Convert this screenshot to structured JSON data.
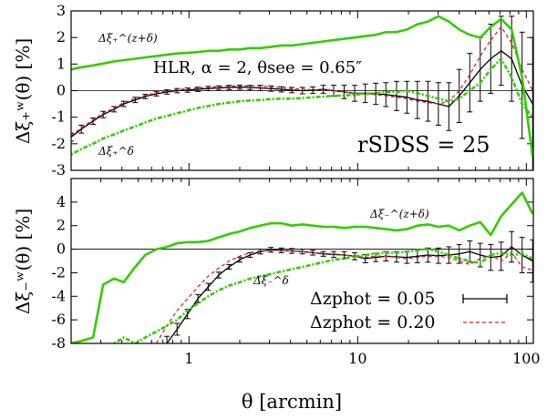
{
  "chart_data": [
    {
      "type": "line",
      "panel": "top",
      "ylabel": "Δξ₊ʷ(θ) [%]",
      "xlabel": "",
      "xscale": "log",
      "xlim": [
        0.2,
        110
      ],
      "ylim": [
        -3,
        3
      ],
      "yticks": [
        "3",
        "2",
        "1",
        "0",
        "-1",
        "-2",
        "-3"
      ],
      "annotations": {
        "label_hlr": "HLR, α = 2, θsee = 0.65″",
        "label_r": "rSDSS = 25",
        "label_zdelta": "Δξ₊^(z+δ)",
        "label_delta": "Δξ₊^δ"
      },
      "x": [
        0.2,
        0.23,
        0.27,
        0.31,
        0.36,
        0.41,
        0.48,
        0.55,
        0.64,
        0.74,
        0.85,
        0.98,
        1.13,
        1.3,
        1.5,
        1.73,
        2.0,
        2.3,
        2.65,
        3.06,
        3.53,
        4.07,
        4.7,
        5.42,
        6.25,
        7.21,
        8.32,
        9.6,
        11.1,
        12.8,
        14.7,
        17.0,
        19.6,
        22.6,
        26.1,
        30.1,
        34.7,
        40.0,
        46.2,
        53.3,
        61.5,
        70.9,
        81.8,
        94.4,
        109
      ],
      "series": [
        {
          "name": "Δz_phot = 0.05",
          "color": "#000000",
          "style": "solid-errorbar",
          "values": [
            -1.75,
            -1.45,
            -1.15,
            -0.9,
            -0.7,
            -0.5,
            -0.35,
            -0.22,
            -0.12,
            -0.05,
            0.0,
            0.02,
            0.05,
            0.08,
            0.1,
            0.12,
            0.13,
            0.12,
            0.1,
            0.08,
            0.05,
            0.02,
            0.0,
            0.02,
            0.05,
            0.0,
            -0.05,
            -0.1,
            -0.1,
            -0.12,
            -0.15,
            -0.2,
            -0.25,
            -0.35,
            -0.4,
            -0.5,
            -0.6,
            -0.2,
            0.3,
            0.8,
            1.2,
            1.5,
            1.2,
            0.2,
            -0.5
          ],
          "errors": [
            0.15,
            0.15,
            0.12,
            0.12,
            0.1,
            0.1,
            0.1,
            0.08,
            0.08,
            0.08,
            0.08,
            0.08,
            0.08,
            0.08,
            0.08,
            0.08,
            0.08,
            0.08,
            0.1,
            0.1,
            0.1,
            0.1,
            0.12,
            0.12,
            0.15,
            0.2,
            0.25,
            0.3,
            0.35,
            0.4,
            0.45,
            0.55,
            0.6,
            0.7,
            0.75,
            0.8,
            0.9,
            1.0,
            1.1,
            1.2,
            1.3,
            1.3,
            1.6,
            2.0,
            2.5
          ]
        },
        {
          "name": "Δz_phot = 0.20",
          "color": "#d62728",
          "style": "dashed",
          "values": [
            -1.7,
            -1.4,
            -1.1,
            -0.85,
            -0.65,
            -0.45,
            -0.3,
            -0.18,
            -0.08,
            0.0,
            0.04,
            0.07,
            0.1,
            0.13,
            0.15,
            0.17,
            0.18,
            0.18,
            0.17,
            0.15,
            0.12,
            0.08,
            0.05,
            0.03,
            0.02,
            0.0,
            -0.05,
            -0.1,
            -0.12,
            -0.15,
            -0.2,
            -0.25,
            -0.3,
            -0.4,
            -0.45,
            -0.5,
            -0.4,
            0.0,
            0.6,
            1.3,
            1.9,
            2.4,
            1.8,
            0.8,
            0.0
          ]
        },
        {
          "name": "Δξ₊^(z+δ)",
          "color": "#33cc00",
          "style": "solid",
          "values": [
            0.8,
            0.88,
            0.95,
            1.02,
            1.1,
            1.15,
            1.2,
            1.25,
            1.3,
            1.35,
            1.4,
            1.42,
            1.45,
            1.5,
            1.5,
            1.55,
            1.55,
            1.6,
            1.6,
            1.65,
            1.7,
            1.7,
            1.75,
            1.8,
            1.85,
            1.9,
            1.95,
            2.0,
            2.05,
            2.1,
            2.2,
            2.2,
            2.3,
            2.5,
            2.6,
            2.8,
            2.6,
            2.3,
            2.1,
            2.0,
            2.4,
            2.7,
            2.3,
            0.5,
            -2.5
          ]
        },
        {
          "name": "Δξ₊^δ",
          "color": "#33cc00",
          "style": "dotted",
          "values": [
            -2.4,
            -2.2,
            -2.0,
            -1.8,
            -1.65,
            -1.5,
            -1.35,
            -1.2,
            -1.05,
            -0.95,
            -0.85,
            -0.75,
            -0.65,
            -0.58,
            -0.5,
            -0.45,
            -0.4,
            -0.37,
            -0.35,
            -0.32,
            -0.3,
            -0.3,
            -0.28,
            -0.25,
            -0.22,
            -0.2,
            -0.18,
            -0.15,
            -0.12,
            -0.1,
            -0.05,
            -0.05,
            0.0,
            -0.1,
            -0.2,
            -0.3,
            -0.4,
            -0.3,
            0.0,
            0.3,
            0.8,
            1.2,
            0.5,
            -0.5,
            -1.0
          ]
        }
      ]
    },
    {
      "type": "line",
      "panel": "bottom",
      "ylabel": "Δξ₋ʷ(θ) [%]",
      "xlabel": "θ [arcmin]",
      "xscale": "log",
      "xlim": [
        0.2,
        110
      ],
      "ylim": [
        -8,
        6
      ],
      "yticks": [
        "4",
        "2",
        "0",
        "-2",
        "-4",
        "-6",
        "-8"
      ],
      "xticklabels": [
        "1",
        "10",
        "100"
      ],
      "annotations": {
        "label_zdelta": "Δξ₋^(z+δ)",
        "label_delta": "Δξ₋^δ"
      },
      "legend": {
        "entries": [
          "Δzphot = 0.05",
          "Δzphot = 0.20"
        ],
        "position": "bottom-right"
      },
      "x": [
        0.2,
        0.23,
        0.27,
        0.31,
        0.36,
        0.41,
        0.48,
        0.55,
        0.64,
        0.74,
        0.85,
        0.98,
        1.13,
        1.3,
        1.5,
        1.73,
        2.0,
        2.3,
        2.65,
        3.06,
        3.53,
        4.07,
        4.7,
        5.42,
        6.25,
        7.21,
        8.32,
        9.6,
        11.1,
        12.8,
        14.7,
        17.0,
        19.6,
        22.6,
        26.1,
        30.1,
        34.7,
        40.0,
        46.2,
        53.3,
        61.5,
        70.9,
        81.8,
        94.4,
        109
      ],
      "series": [
        {
          "name": "Δz_phot = 0.05",
          "color": "#000000",
          "style": "solid-errorbar",
          "values": [
            null,
            null,
            null,
            null,
            null,
            null,
            null,
            null,
            null,
            -8.0,
            -6.8,
            -5.5,
            -4.2,
            -3.2,
            -2.2,
            -1.5,
            -0.9,
            -0.5,
            -0.2,
            -0.05,
            -0.1,
            -0.15,
            -0.2,
            -0.3,
            -0.4,
            -0.45,
            -0.5,
            -0.6,
            -0.8,
            -0.7,
            -0.6,
            -0.65,
            -0.7,
            -0.6,
            -0.5,
            -0.55,
            -0.5,
            -0.4,
            -0.2,
            -0.5,
            -0.7,
            -0.6,
            0.2,
            -0.5,
            -1.0
          ],
          "errors": [
            0,
            0,
            0,
            0,
            0,
            0,
            0,
            0,
            0,
            0.6,
            0.5,
            0.4,
            0.35,
            0.3,
            0.25,
            0.2,
            0.2,
            0.2,
            0.2,
            0.2,
            0.2,
            0.2,
            0.2,
            0.2,
            0.2,
            0.25,
            0.3,
            0.3,
            0.35,
            0.35,
            0.4,
            0.45,
            0.5,
            0.55,
            0.6,
            0.65,
            0.7,
            0.8,
            0.9,
            1.0,
            1.1,
            1.2,
            1.3,
            1.5,
            1.8
          ]
        },
        {
          "name": "Δz_phot = 0.20",
          "color": "#d62728",
          "style": "dashed",
          "values": [
            null,
            null,
            null,
            null,
            null,
            null,
            null,
            null,
            -8.0,
            -6.5,
            -5.2,
            -4.2,
            -3.2,
            -2.3,
            -1.6,
            -1.0,
            -0.6,
            -0.3,
            -0.15,
            -0.1,
            -0.1,
            -0.15,
            -0.2,
            -0.3,
            -0.35,
            -0.4,
            -0.5,
            -0.6,
            -0.7,
            -0.6,
            -0.6,
            -0.7,
            -0.8,
            -0.7,
            -0.6,
            -0.6,
            -0.7,
            -1.0,
            -1.3,
            -0.8,
            -0.5,
            -1.0,
            -0.3,
            -1.5,
            -1.8
          ]
        },
        {
          "name": "Δξ₋^(z+δ)",
          "color": "#33cc00",
          "style": "solid",
          "values": [
            -8.0,
            -7.8,
            -7.5,
            -3.0,
            -2.5,
            -2.8,
            -1.5,
            -0.5,
            0.0,
            0.2,
            0.5,
            0.6,
            0.6,
            0.7,
            1.0,
            1.3,
            1.5,
            1.8,
            2.0,
            2.2,
            2.2,
            2.0,
            2.1,
            2.0,
            1.9,
            1.9,
            1.8,
            1.9,
            1.9,
            1.8,
            1.7,
            1.6,
            1.7,
            2.0,
            2.1,
            1.9,
            2.0,
            1.6,
            2.0,
            2.3,
            1.2,
            2.8,
            3.8,
            4.8,
            3.0
          ]
        },
        {
          "name": "Δξ₋^δ",
          "color": "#33cc00",
          "style": "dotted",
          "values": [
            null,
            null,
            null,
            null,
            -8.0,
            -7.5,
            -8.0,
            -7.5,
            -7.0,
            -6.5,
            -6.0,
            -5.2,
            -4.6,
            -4.0,
            -3.5,
            -3.1,
            -2.8,
            -2.5,
            -2.3,
            -2.1,
            -1.9,
            -1.7,
            -1.5,
            -1.3,
            -1.1,
            -0.9,
            -0.8,
            -0.6,
            -0.5,
            -0.4,
            -0.3,
            -0.3,
            -0.2,
            -0.1,
            0.0,
            -0.2,
            -0.5,
            -0.8,
            -1.0,
            -1.2,
            -0.5,
            -0.3,
            -0.5,
            -0.4,
            -0.8
          ]
        }
      ]
    }
  ]
}
